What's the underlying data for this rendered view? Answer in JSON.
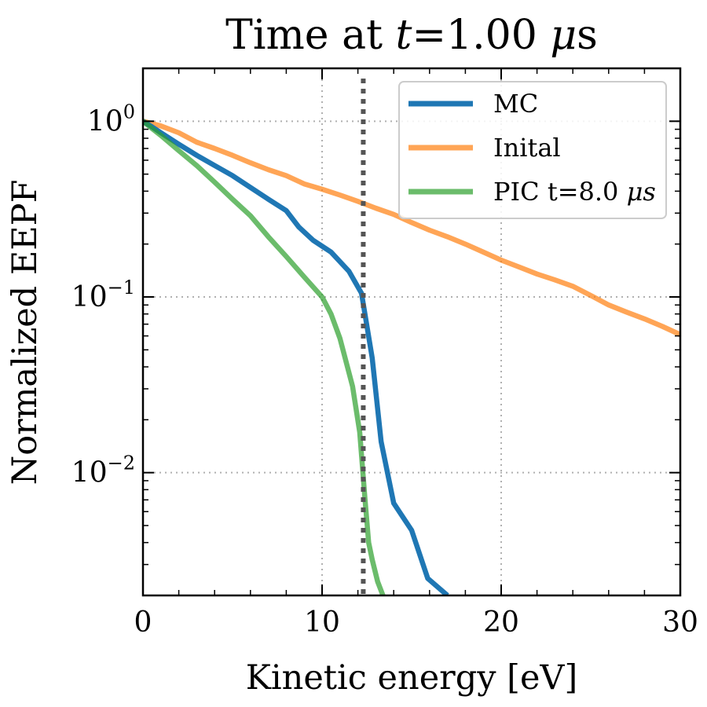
{
  "chart_data": {
    "type": "line",
    "title": "Time at ",
    "title_var": "t",
    "title_value": "=1.00 ",
    "title_unit_greek": "μ",
    "title_unit": "s",
    "xlabel": "Kinetic energy [eV]",
    "ylabel": "Normalized EEPF",
    "xlim": [
      0,
      30
    ],
    "ylim": [
      0.002,
      2.0
    ],
    "yscale": "log",
    "grid": true,
    "legend_position": "top-right",
    "x_ticks": [
      {
        "value": 0,
        "label": "0"
      },
      {
        "value": 10,
        "label": "10"
      },
      {
        "value": 20,
        "label": "20"
      },
      {
        "value": 30,
        "label": "30"
      }
    ],
    "y_ticks": [
      {
        "value": 1,
        "base": "10",
        "exp": "0"
      },
      {
        "value": 0.1,
        "base": "10",
        "exp": "−1"
      },
      {
        "value": 0.01,
        "base": "10",
        "exp": "−2"
      }
    ],
    "vline": {
      "x": 12.3,
      "color": "#555555",
      "style": "dotted"
    },
    "series": [
      {
        "name": "MC",
        "color": "#1f77b4",
        "x": [
          0,
          0.5,
          1,
          2,
          3,
          4,
          5,
          6,
          7,
          8,
          8.7,
          9.5,
          10.5,
          11.5,
          12.2,
          12.8,
          13.3,
          14,
          15,
          15.9,
          17
        ],
        "y": [
          1.0,
          0.93,
          0.86,
          0.74,
          0.64,
          0.56,
          0.49,
          0.42,
          0.36,
          0.31,
          0.25,
          0.21,
          0.18,
          0.14,
          0.105,
          0.045,
          0.015,
          0.0067,
          0.0047,
          0.0025,
          0.002
        ]
      },
      {
        "name": "Inital",
        "color": "#ff7f0e",
        "x": [
          0,
          1,
          2,
          3,
          4,
          5,
          6,
          7,
          8,
          9,
          10,
          11,
          12,
          13,
          14,
          15,
          16,
          17,
          18,
          19,
          20,
          21,
          22,
          23,
          24,
          25,
          26,
          27,
          28,
          29,
          30
        ],
        "y": [
          1.0,
          0.94,
          0.86,
          0.76,
          0.7,
          0.64,
          0.58,
          0.53,
          0.49,
          0.44,
          0.41,
          0.38,
          0.35,
          0.32,
          0.295,
          0.265,
          0.24,
          0.22,
          0.2,
          0.18,
          0.162,
          0.148,
          0.135,
          0.125,
          0.115,
          0.102,
          0.09,
          0.082,
          0.075,
          0.068,
          0.061
        ]
      },
      {
        "name_prefix": "PIC  t=8.0 ",
        "name_greek": "μ",
        "name_suffix": "s",
        "color": "#2ca02c",
        "x": [
          0,
          0.5,
          1,
          2,
          3,
          4,
          5,
          6,
          7,
          8,
          9,
          10,
          10.5,
          11,
          11.7,
          12.1,
          12.4,
          12.6,
          12.8,
          13.1,
          13.4
        ],
        "y": [
          1.0,
          0.91,
          0.83,
          0.68,
          0.56,
          0.45,
          0.36,
          0.29,
          0.22,
          0.17,
          0.13,
          0.1,
          0.08,
          0.058,
          0.031,
          0.017,
          0.007,
          0.004,
          0.0032,
          0.0024,
          0.002
        ]
      }
    ]
  }
}
